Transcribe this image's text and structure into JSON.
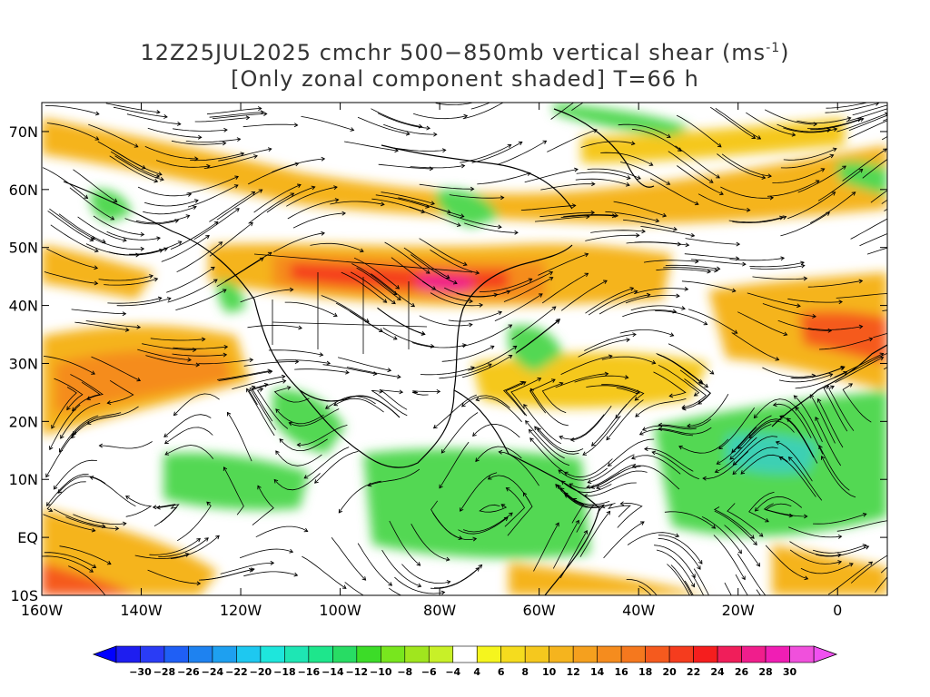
{
  "title": {
    "line1_prefix": "12Z25JUL2025 cmchr 500−850mb vertical shear (ms",
    "line1_sup": "-1",
    "line1_suffix": ")",
    "line2": "[Only zonal component shaded] T=66 h"
  },
  "axes": {
    "lat_labels": [
      "70N",
      "60N",
      "50N",
      "40N",
      "30N",
      "20N",
      "10N",
      "EQ",
      "10S"
    ],
    "lat_values": [
      70,
      60,
      50,
      40,
      30,
      20,
      10,
      0,
      -10
    ],
    "lon_labels": [
      "160W",
      "140W",
      "120W",
      "100W",
      "80W",
      "60W",
      "40W",
      "20W",
      "0"
    ],
    "lon_values": [
      -160,
      -140,
      -120,
      -100,
      -80,
      -60,
      -40,
      -20,
      0
    ],
    "lon_range": [
      -160,
      10
    ],
    "lat_range": [
      -10,
      75
    ]
  },
  "colorbar": {
    "labels": [
      "-30",
      "-28",
      "-26",
      "-24",
      "-22",
      "-20",
      "-18",
      "-16",
      "-14",
      "-12",
      "-10",
      "-8",
      "-6",
      "-4",
      "4",
      "6",
      "8",
      "10",
      "12",
      "14",
      "16",
      "18",
      "20",
      "22",
      "24",
      "26",
      "28",
      "30"
    ],
    "colors": [
      "#1e1ef0",
      "#2a3cf5",
      "#1f5ff5",
      "#1e82f0",
      "#1ea0f0",
      "#1ec8f0",
      "#1ee6dc",
      "#1ee6b4",
      "#1ee68c",
      "#28dc64",
      "#3cdc28",
      "#78e61e",
      "#a0e61e",
      "#c8f028",
      "#ffffff",
      "#f5f51e",
      "#f5dc1e",
      "#f5c81e",
      "#f5b41e",
      "#f5a01e",
      "#f58c1e",
      "#f5781e",
      "#f55a1e",
      "#f53c1e",
      "#f51e1e",
      "#f01e5a",
      "#f01e8c",
      "#f01eb4",
      "#f050dc"
    ],
    "low_arrow_color": "#0000ff",
    "high_arrow_color": "#f050f0"
  },
  "colors": {
    "easterly_shear": "#52d852",
    "westerly_shear": "#f5a51e",
    "strong_westerly": "#f0321e",
    "streamline": "#000000"
  }
}
